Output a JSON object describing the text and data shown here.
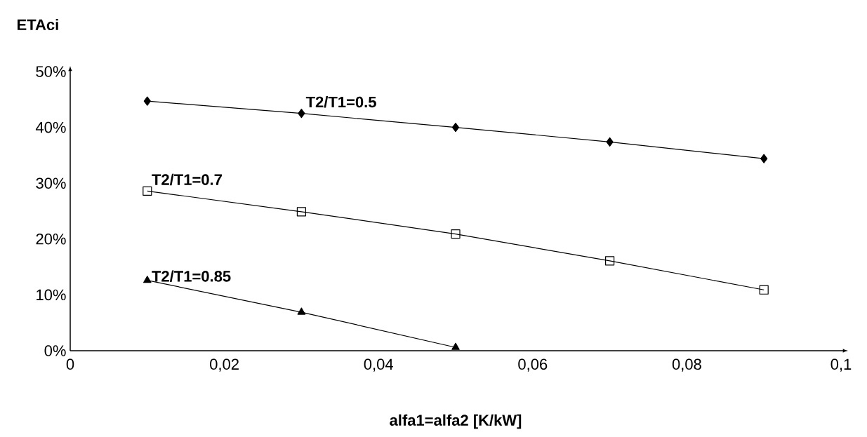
{
  "chart_data": {
    "type": "line",
    "xlabel": "alfa1=alfa2 [K/kW]",
    "ylabel": "ETAci",
    "xlim": [
      0,
      0.1
    ],
    "ylim": [
      0,
      50
    ],
    "xticks": [
      0,
      {
        "value": 0.02,
        "label": "0,02"
      },
      {
        "value": 0.04,
        "label": "0,04"
      },
      {
        "value": 0.06,
        "label": "0,06"
      },
      {
        "value": 0.08,
        "label": "0,08"
      },
      {
        "value": 0.1,
        "label": "0,1"
      }
    ],
    "yticks": [
      {
        "value": 0,
        "label": "0%"
      },
      {
        "value": 10,
        "label": "10%"
      },
      {
        "value": 20,
        "label": "20%"
      },
      {
        "value": 30,
        "label": "30%"
      },
      {
        "value": 40,
        "label": "40%"
      },
      {
        "value": 50,
        "label": "50%"
      }
    ],
    "grid": false,
    "legend": false,
    "series": [
      {
        "name": "T2/T1=0.5",
        "color": "#000000",
        "marker": "diamond",
        "x": [
          0.01,
          0.03,
          0.05,
          0.07,
          0.09
        ],
        "values": [
          44.7,
          42.5,
          40.0,
          37.4,
          34.4
        ]
      },
      {
        "name": "T2/T1=0.7",
        "color": "#000000",
        "marker": "square",
        "x": [
          0.01,
          0.03,
          0.05,
          0.07,
          0.09
        ],
        "values": [
          28.6,
          24.9,
          20.9,
          16.1,
          10.9
        ]
      },
      {
        "name": "T2/T1=0.85",
        "color": "#000000",
        "marker": "triangle",
        "x": [
          0.01,
          0.03,
          0.05
        ],
        "values": [
          12.6,
          6.9,
          0.6
        ]
      }
    ]
  }
}
